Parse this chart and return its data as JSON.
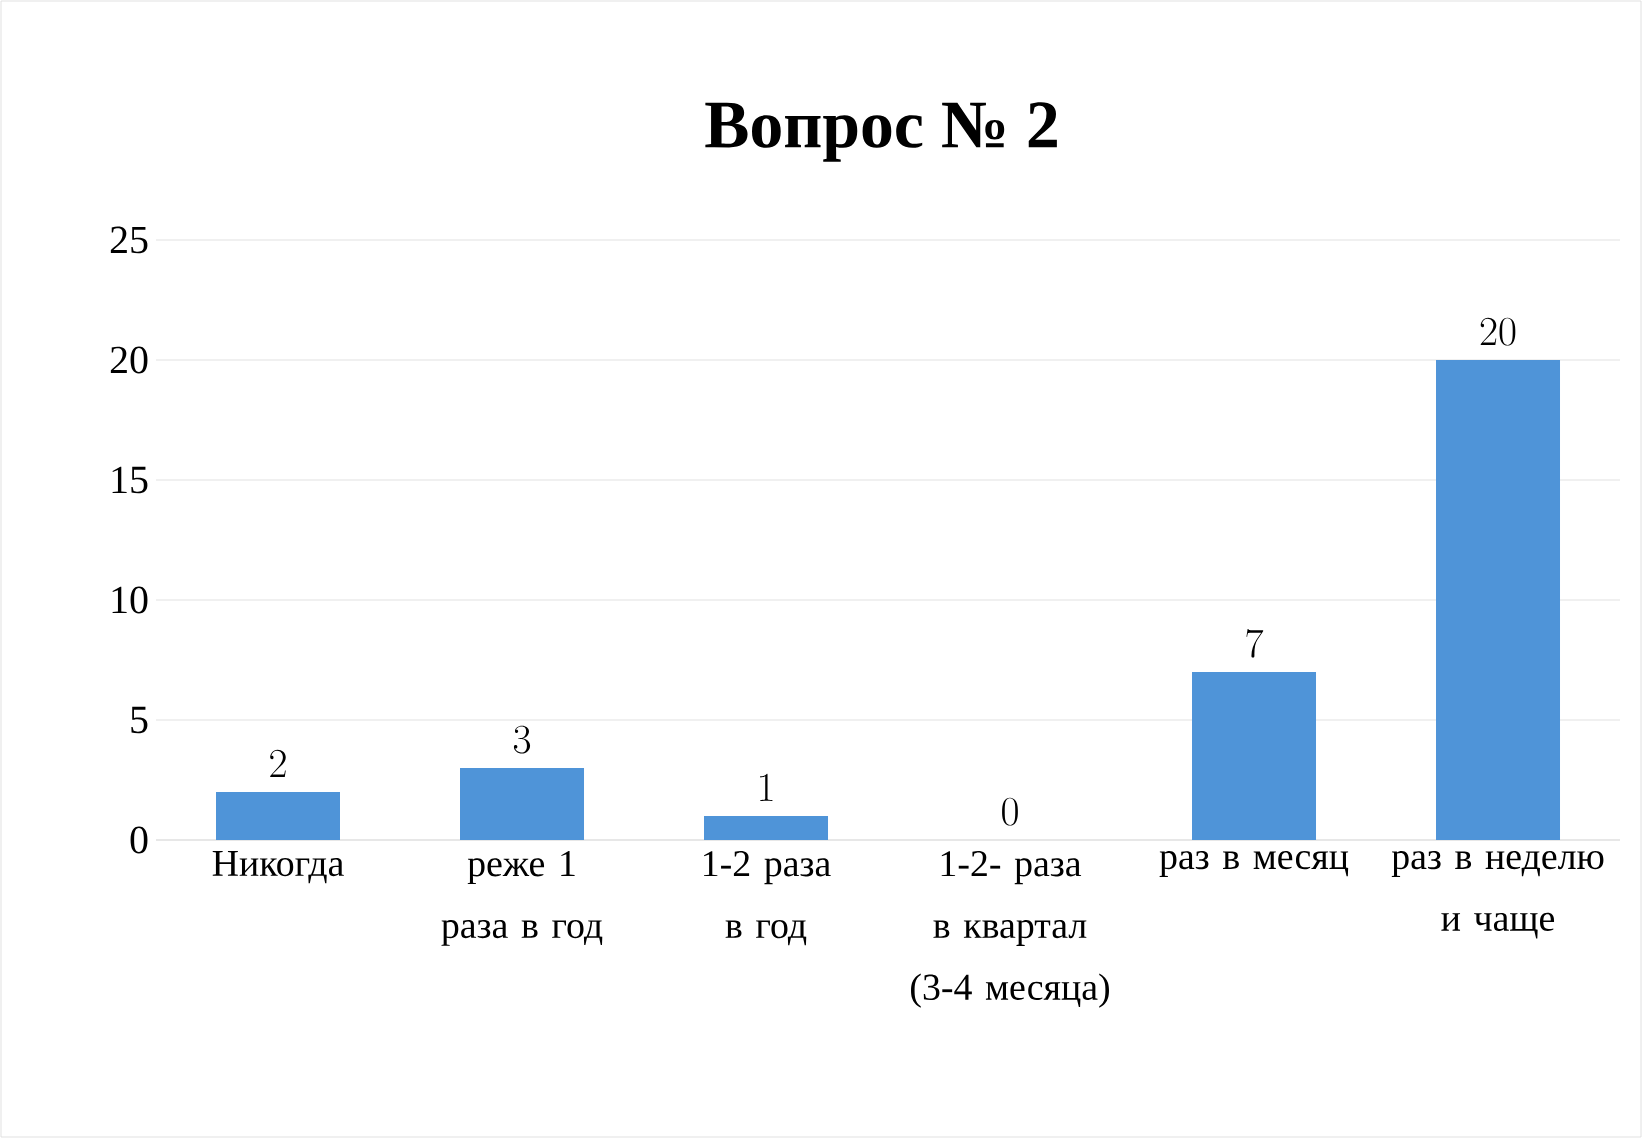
{
  "chart_data": {
    "type": "bar",
    "title": "Вопрос № 2",
    "categories": [
      "Никогда",
      "реже 1 раза в год",
      "1-2 раза в год",
      "1-2- раза в квартал (3-4 месяца)",
      "раз в месяц",
      "раз в неделю и чаще"
    ],
    "values": [
      2,
      3,
      1,
      0,
      7,
      20
    ],
    "color": "#4f94d8",
    "ylim": [
      0,
      25
    ],
    "yticks": [
      0,
      5,
      10,
      15,
      20,
      25
    ],
    "grid": "y",
    "data_labels": true
  }
}
